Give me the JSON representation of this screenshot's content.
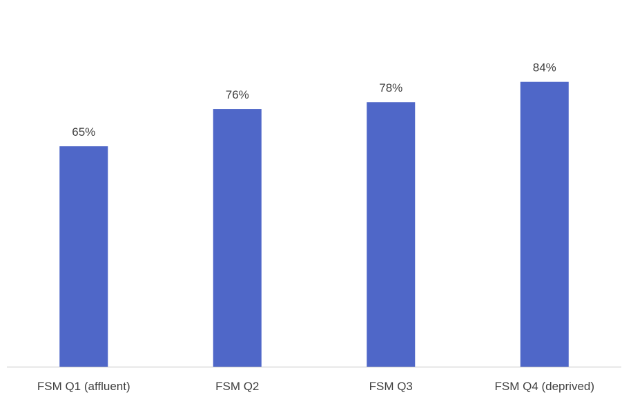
{
  "chart_data": {
    "type": "bar",
    "categories": [
      "FSM Q1 (affluent)",
      "FSM Q2",
      "FSM Q3",
      "FSM Q4 (deprived)"
    ],
    "values": [
      65,
      76,
      78,
      84
    ],
    "value_labels": [
      "65%",
      "76%",
      "78%",
      "84%"
    ],
    "title": "",
    "xlabel": "",
    "ylabel": "",
    "ylim": [
      0,
      100
    ],
    "grid": false,
    "legend": "none",
    "bar_color": "#4F67C8",
    "axis_color": "#BFBFBF",
    "text_color": "#404040"
  }
}
